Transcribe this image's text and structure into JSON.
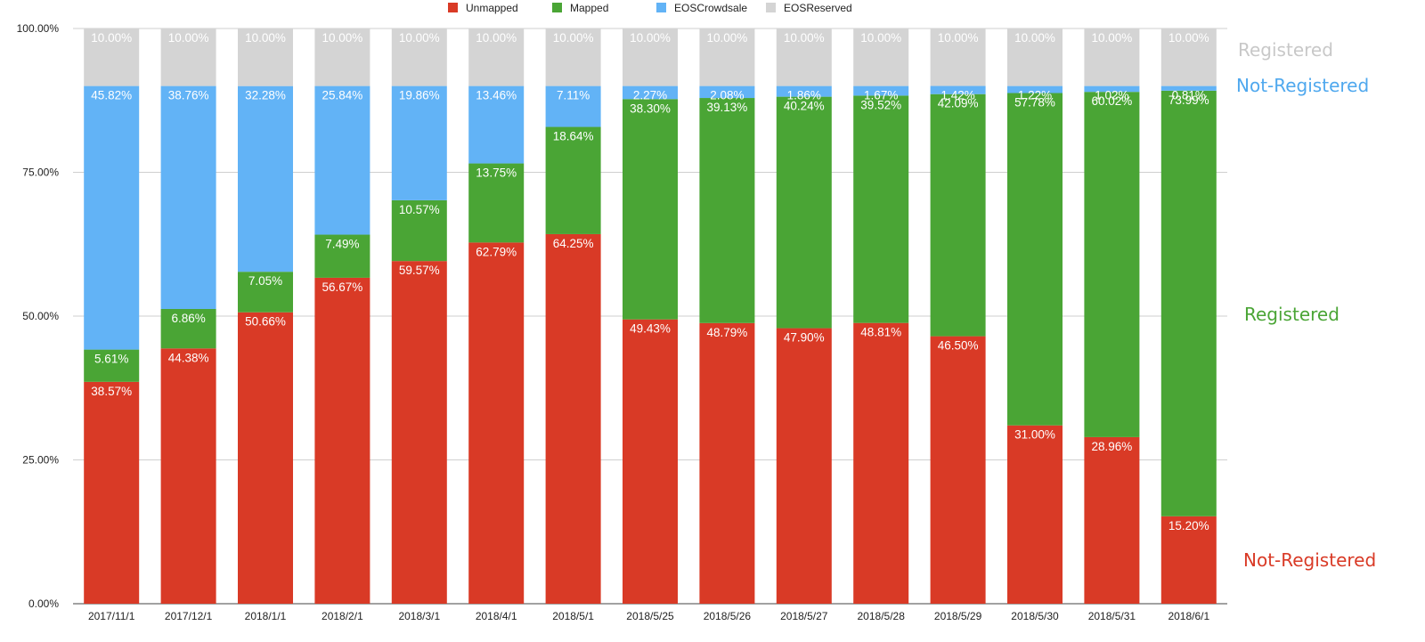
{
  "chart_data": {
    "type": "bar",
    "stacked": true,
    "normalized": true,
    "categories": [
      "2017/11/1",
      "2017/12/1",
      "2018/1/1",
      "2018/2/1",
      "2018/3/1",
      "2018/4/1",
      "2018/5/1",
      "2018/5/25",
      "2018/5/26",
      "2018/5/27",
      "2018/5/28",
      "2018/5/29",
      "2018/5/30",
      "2018/5/31",
      "2018/6/1"
    ],
    "series": [
      {
        "name": "Unmapped",
        "color": "#d93a26",
        "values": [
          38.57,
          44.38,
          50.66,
          56.67,
          59.57,
          62.79,
          64.25,
          49.43,
          48.79,
          47.9,
          48.81,
          46.5,
          31.0,
          28.96,
          15.2
        ],
        "labels": [
          "38.57%",
          "44.38%",
          "50.66%",
          "56.67%",
          "59.57%",
          "62.79%",
          "64.25%",
          "49.43%",
          "48.79%",
          "47.90%",
          "48.81%",
          "46.50%",
          "31.00%",
          "28.96%",
          "15.20%"
        ]
      },
      {
        "name": "Mapped",
        "color": "#4aa535",
        "values": [
          5.61,
          6.86,
          7.05,
          7.49,
          10.57,
          13.75,
          18.64,
          38.3,
          39.13,
          40.24,
          39.52,
          42.09,
          57.78,
          60.02,
          73.99
        ],
        "labels": [
          "5.61%",
          "6.86%",
          "7.05%",
          "7.49%",
          "10.57%",
          "13.75%",
          "18.64%",
          "38.30%",
          "39.13%",
          "40.24%",
          "39.52%",
          "42.09%",
          "57.78%",
          "60.02%",
          "73.99%"
        ]
      },
      {
        "name": "EOSCrowdsale",
        "color": "#62b3f6",
        "values": [
          45.82,
          38.76,
          32.28,
          25.84,
          19.86,
          13.46,
          7.11,
          2.27,
          2.08,
          1.86,
          1.67,
          1.42,
          1.22,
          1.02,
          0.81
        ],
        "labels": [
          "45.82%",
          "38.76%",
          "32.28%",
          "25.84%",
          "19.86%",
          "13.46%",
          "7.11%",
          "2.27%",
          "2.08%",
          "1.86%",
          "1.67%",
          "1.42%",
          "1.22%",
          "1.02%",
          "0.81%"
        ]
      },
      {
        "name": "EOSReserved",
        "color": "#d4d4d4",
        "values": [
          10,
          10,
          10,
          10,
          10,
          10,
          10,
          10,
          10,
          10,
          10,
          10,
          10,
          10,
          10
        ],
        "labels": [
          "10.00%",
          "10.00%",
          "10.00%",
          "10.00%",
          "10.00%",
          "10.00%",
          "10.00%",
          "10.00%",
          "10.00%",
          "10.00%",
          "10.00%",
          "10.00%",
          "10.00%",
          "10.00%",
          "10.00%"
        ]
      }
    ],
    "ylim": [
      0,
      100
    ],
    "yticks": [
      "0.00%",
      "25.00%",
      "50.00%",
      "75.00%",
      "100.00%"
    ],
    "grid": true,
    "legend_position": "top-center",
    "annotations": [
      {
        "text": "Registered",
        "color": "#c8c8c8",
        "series": "EOSReserved"
      },
      {
        "text": "Not-Registered",
        "color": "#4fa8ee",
        "series": "EOSCrowdsale"
      },
      {
        "text": "Registered",
        "color": "#4aa535",
        "series": "Mapped"
      },
      {
        "text": "Not-Registered",
        "color": "#d93a26",
        "series": "Unmapped"
      }
    ]
  }
}
